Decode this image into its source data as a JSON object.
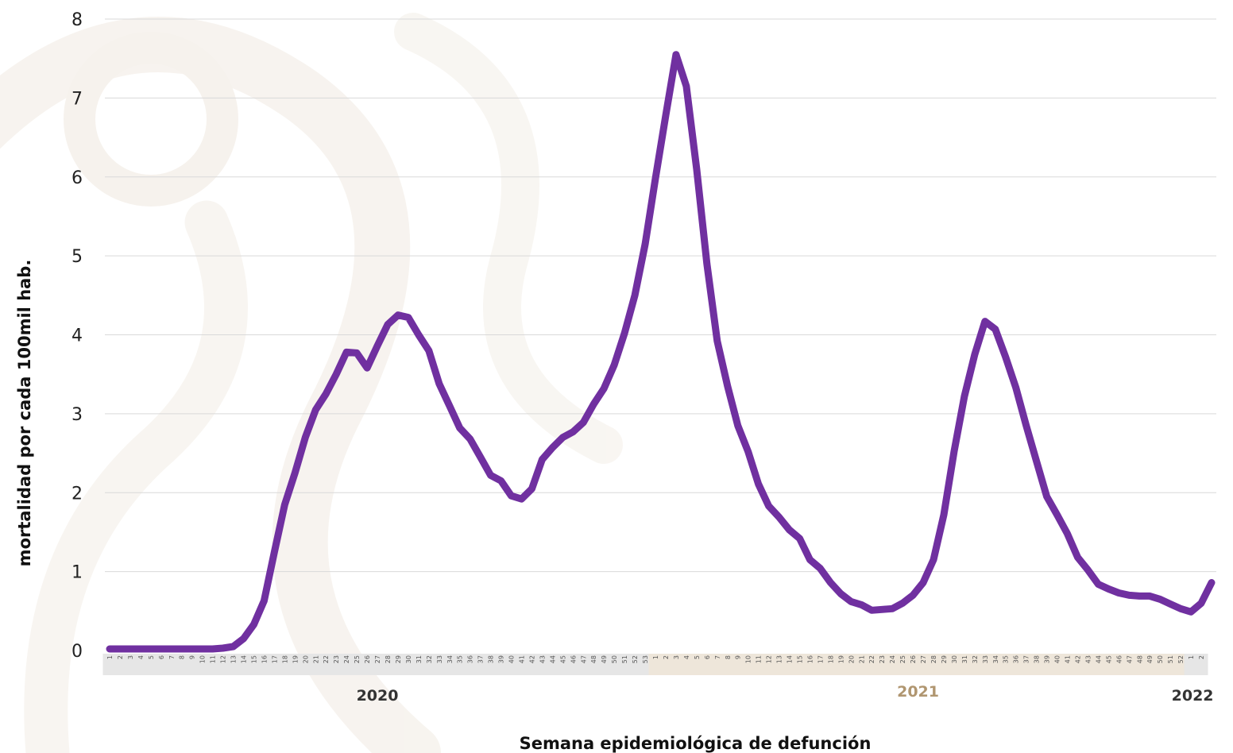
{
  "chart_data": {
    "type": "line",
    "ylabel": "mortalidad por cada 100mil hab.",
    "xlabel": "Semana epidemiológica de defunción",
    "ylim": [
      0,
      8
    ],
    "yticks": [
      0,
      1,
      2,
      3,
      4,
      5,
      6,
      7,
      8
    ],
    "grid": true,
    "line_color": "#7030a0",
    "years": [
      {
        "label": "2020",
        "weeks": 53,
        "band_color": "#e6e6e6",
        "label_color": "#333333"
      },
      {
        "label": "2021",
        "weeks": 52,
        "band_color": "#eee6da",
        "label_color": "#b09670"
      },
      {
        "label": "2022",
        "weeks": 2,
        "band_color": "#e6e6e6",
        "label_color": "#333333"
      }
    ],
    "series": [
      {
        "values": [
          0.02,
          0.02,
          0.02,
          0.02,
          0.02,
          0.02,
          0.02,
          0.02,
          0.02,
          0.02,
          0.02,
          0.03,
          0.05,
          0.15,
          0.33,
          0.63,
          1.25,
          1.85,
          2.25,
          2.7,
          3.05,
          3.25,
          3.5,
          3.78,
          3.77,
          3.58,
          3.86,
          4.13,
          4.25,
          4.22,
          4.0,
          3.8,
          3.38,
          3.1,
          2.82,
          2.68,
          2.45,
          2.22,
          2.15,
          1.96,
          1.92,
          2.05,
          2.42,
          2.57,
          2.7,
          2.77,
          2.89,
          3.12,
          3.32,
          3.62,
          4.02,
          4.5,
          5.15,
          5.98,
          6.78,
          7.55,
          7.15,
          6.1,
          4.9,
          3.92,
          3.35,
          2.85,
          2.52,
          2.11,
          1.83,
          1.69,
          1.53,
          1.42,
          1.15,
          1.04,
          0.86,
          0.72,
          0.62,
          0.58,
          0.51,
          0.52,
          0.53,
          0.6,
          0.7,
          0.86,
          1.15,
          1.72,
          2.52,
          3.22,
          3.75,
          4.17,
          4.07,
          3.72,
          3.33,
          2.85,
          2.4,
          1.95,
          1.72,
          1.48,
          1.18,
          1.02,
          0.84,
          0.78,
          0.73,
          0.7,
          0.69,
          0.69,
          0.65,
          0.59,
          0.53,
          0.49,
          0.6,
          0.86
        ]
      }
    ]
  }
}
